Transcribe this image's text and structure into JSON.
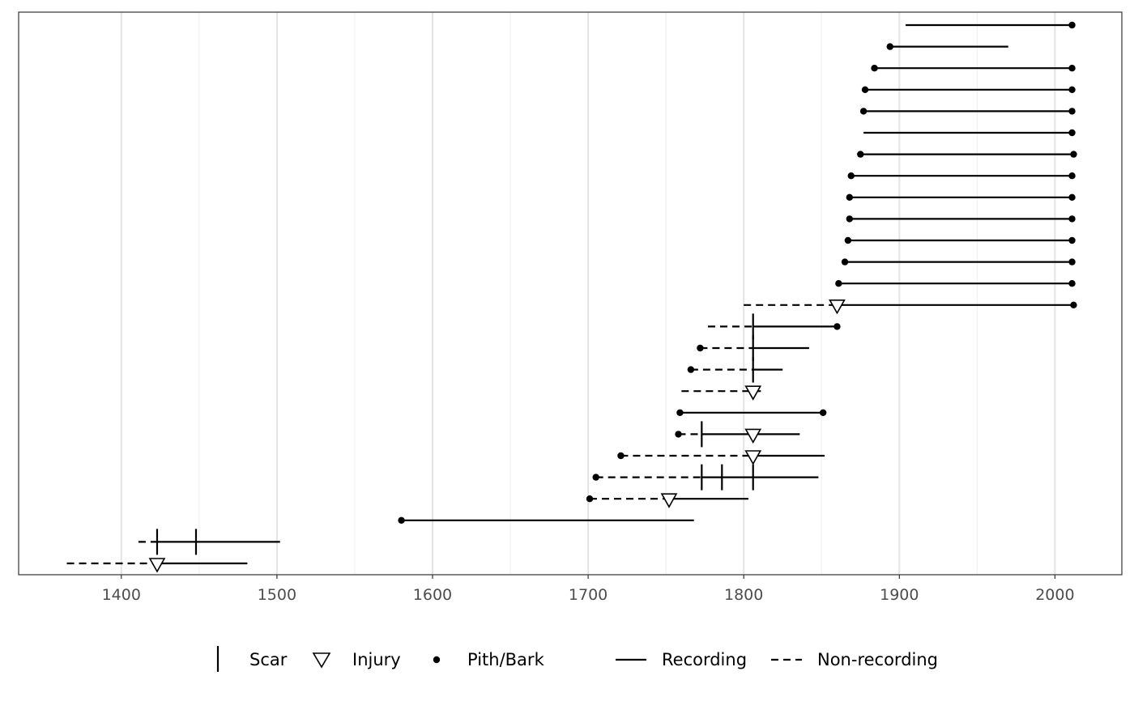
{
  "chart_data": {
    "type": "fire-history",
    "title": "",
    "xlabel": "",
    "ylabel": "",
    "xlim": [
      1334,
      2043
    ],
    "x_ticks": [
      1400,
      1500,
      1600,
      1700,
      1800,
      1900,
      2000
    ],
    "x_minor_ticks": [
      1450,
      1550,
      1650,
      1750,
      1850,
      1950
    ],
    "grid": true,
    "legend_position": "bottom",
    "legend": {
      "scar": "Scar",
      "injury": "Injury",
      "pith_bark": "Pith/Bark",
      "recording": "Recording",
      "non_recording": "Non-recording"
    },
    "series": [
      {
        "segments": [
          {
            "from": 1904,
            "to": 2011,
            "type": "recording"
          }
        ],
        "pith": null,
        "bark": 2011,
        "scars": [],
        "injuries": []
      },
      {
        "segments": [
          {
            "from": 1894,
            "to": 1970,
            "type": "recording"
          }
        ],
        "pith": 1894,
        "bark": null,
        "scars": [],
        "injuries": []
      },
      {
        "segments": [
          {
            "from": 1884,
            "to": 2011,
            "type": "recording"
          }
        ],
        "pith": 1884,
        "bark": 2011,
        "scars": [],
        "injuries": []
      },
      {
        "segments": [
          {
            "from": 1878,
            "to": 2011,
            "type": "recording"
          }
        ],
        "pith": 1878,
        "bark": 2011,
        "scars": [],
        "injuries": []
      },
      {
        "segments": [
          {
            "from": 1877,
            "to": 2011,
            "type": "recording"
          }
        ],
        "pith": 1877,
        "bark": 2011,
        "scars": [],
        "injuries": []
      },
      {
        "segments": [
          {
            "from": 1877,
            "to": 2011,
            "type": "recording"
          }
        ],
        "pith": null,
        "bark": 2011,
        "scars": [],
        "injuries": []
      },
      {
        "segments": [
          {
            "from": 1875,
            "to": 2012,
            "type": "recording"
          }
        ],
        "pith": 1875,
        "bark": 2012,
        "scars": [],
        "injuries": []
      },
      {
        "segments": [
          {
            "from": 1869,
            "to": 2011,
            "type": "recording"
          }
        ],
        "pith": 1869,
        "bark": 2011,
        "scars": [],
        "injuries": []
      },
      {
        "segments": [
          {
            "from": 1868,
            "to": 2011,
            "type": "recording"
          }
        ],
        "pith": 1868,
        "bark": 2011,
        "scars": [],
        "injuries": []
      },
      {
        "segments": [
          {
            "from": 1868,
            "to": 2011,
            "type": "recording"
          }
        ],
        "pith": 1868,
        "bark": 2011,
        "scars": [],
        "injuries": []
      },
      {
        "segments": [
          {
            "from": 1867,
            "to": 2011,
            "type": "recording"
          }
        ],
        "pith": 1867,
        "bark": 2011,
        "scars": [],
        "injuries": []
      },
      {
        "segments": [
          {
            "from": 1865,
            "to": 2011,
            "type": "recording"
          }
        ],
        "pith": 1865,
        "bark": 2011,
        "scars": [],
        "injuries": []
      },
      {
        "segments": [
          {
            "from": 1861,
            "to": 2011,
            "type": "recording"
          }
        ],
        "pith": 1861,
        "bark": 2011,
        "scars": [],
        "injuries": []
      },
      {
        "segments": [
          {
            "from": 1800,
            "to": 1860,
            "type": "non-recording"
          },
          {
            "from": 1860,
            "to": 2012,
            "type": "recording"
          }
        ],
        "pith": null,
        "bark": 2012,
        "scars": [],
        "injuries": [
          1860
        ]
      },
      {
        "segments": [
          {
            "from": 1777,
            "to": 1806,
            "type": "non-recording"
          },
          {
            "from": 1806,
            "to": 1860,
            "type": "recording"
          }
        ],
        "pith": null,
        "bark": 1860,
        "scars": [
          1806
        ],
        "injuries": []
      },
      {
        "segments": [
          {
            "from": 1772,
            "to": 1806,
            "type": "non-recording"
          },
          {
            "from": 1806,
            "to": 1842,
            "type": "recording"
          }
        ],
        "pith": 1772,
        "bark": null,
        "scars": [
          1806
        ],
        "injuries": []
      },
      {
        "segments": [
          {
            "from": 1766,
            "to": 1806,
            "type": "non-recording"
          },
          {
            "from": 1806,
            "to": 1825,
            "type": "recording"
          }
        ],
        "pith": 1766,
        "bark": null,
        "scars": [
          1806
        ],
        "injuries": []
      },
      {
        "segments": [
          {
            "from": 1760,
            "to": 1806,
            "type": "non-recording"
          },
          {
            "from": 1806,
            "to": 1811,
            "type": "recording"
          }
        ],
        "pith": null,
        "bark": null,
        "scars": [],
        "injuries": [
          1806
        ]
      },
      {
        "segments": [
          {
            "from": 1759,
            "to": 1851,
            "type": "recording"
          }
        ],
        "pith": 1759,
        "bark": 1851,
        "scars": [],
        "injuries": []
      },
      {
        "segments": [
          {
            "from": 1758,
            "to": 1773,
            "type": "non-recording"
          },
          {
            "from": 1773,
            "to": 1836,
            "type": "recording"
          }
        ],
        "pith": 1758,
        "bark": null,
        "scars": [
          1773
        ],
        "injuries": [
          1806
        ]
      },
      {
        "segments": [
          {
            "from": 1721,
            "to": 1806,
            "type": "non-recording"
          },
          {
            "from": 1806,
            "to": 1852,
            "type": "recording"
          }
        ],
        "pith": 1721,
        "bark": null,
        "scars": [],
        "injuries": [
          1806
        ]
      },
      {
        "segments": [
          {
            "from": 1705,
            "to": 1773,
            "type": "non-recording"
          },
          {
            "from": 1773,
            "to": 1848,
            "type": "recording"
          }
        ],
        "pith": 1705,
        "bark": null,
        "scars": [
          1773,
          1786,
          1806
        ],
        "injuries": []
      },
      {
        "segments": [
          {
            "from": 1701,
            "to": 1752,
            "type": "non-recording"
          },
          {
            "from": 1752,
            "to": 1803,
            "type": "recording"
          }
        ],
        "pith": 1701,
        "bark": null,
        "scars": [],
        "injuries": [
          1752
        ]
      },
      {
        "segments": [
          {
            "from": 1580,
            "to": 1768,
            "type": "recording"
          }
        ],
        "pith": 1580,
        "bark": null,
        "scars": [],
        "injuries": []
      },
      {
        "segments": [
          {
            "from": 1411,
            "to": 1423,
            "type": "non-recording"
          },
          {
            "from": 1423,
            "to": 1502,
            "type": "recording"
          }
        ],
        "pith": null,
        "bark": null,
        "scars": [
          1423,
          1448
        ],
        "injuries": []
      },
      {
        "segments": [
          {
            "from": 1365,
            "to": 1423,
            "type": "non-recording"
          },
          {
            "from": 1423,
            "to": 1481,
            "type": "recording"
          }
        ],
        "pith": null,
        "bark": null,
        "scars": [],
        "injuries": [
          1423
        ]
      }
    ]
  }
}
